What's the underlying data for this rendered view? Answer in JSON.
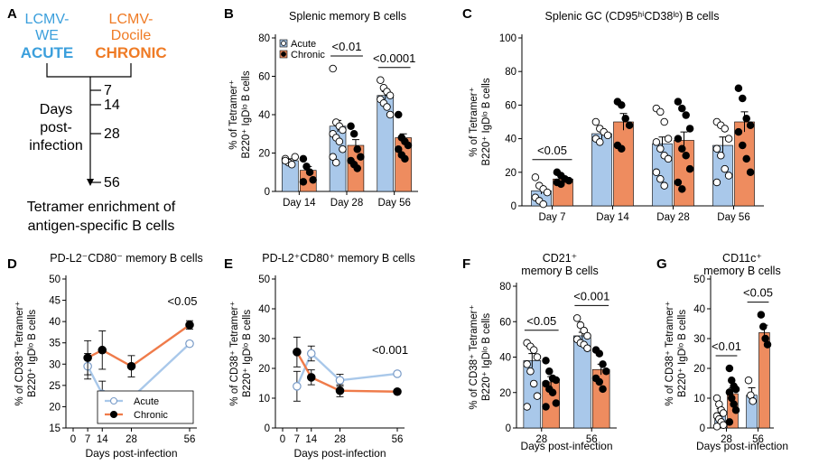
{
  "colors": {
    "acute_fill": "#a9c8ea",
    "chronic_fill": "#ee8c5f",
    "acute_line": "#a9c8ea",
    "chronic_line": "#ef7b4a",
    "acute_text": "#3b9fdc",
    "chronic_text": "#ef7b25"
  },
  "schematic": {
    "letter": "A",
    "acute_virus_l1": "LCMV-",
    "acute_virus_l2": "WE",
    "acute_label": "ACUTE",
    "chronic_virus_l1": "LCMV-",
    "chronic_virus_l2": "Docile",
    "chronic_label": "CHRONIC",
    "days_l1": "Days",
    "days_l2": "post-",
    "days_l3": "infection",
    "timepoints": [
      "7",
      "14",
      "28",
      "56"
    ],
    "caption_l1": "Tetramer enrichment of",
    "caption_l2": "antigen-specific B cells"
  },
  "chart_data": [
    {
      "id": "B",
      "type": "bar",
      "letter": "B",
      "title": "Splenic memory B cells",
      "ylabel_l1": "% of Tetramer⁺",
      "ylabel_l2": "B220⁺ IgDˡᵒ B cells",
      "categories": [
        "Day 14",
        "Day 28",
        "Day 56"
      ],
      "ylim": [
        0,
        80
      ],
      "yticks": [
        "0",
        "20",
        "40",
        "60",
        "80"
      ],
      "legend": [
        "Acute",
        "Chronic"
      ],
      "series": [
        {
          "name": "Acute",
          "values": [
            16,
            34,
            50
          ],
          "points": [
            [
              17,
              15,
              14,
              18,
              16
            ],
            [
              64,
              36,
              34,
              32,
              30,
              28,
              26,
              22,
              18,
              15
            ],
            [
              58,
              54,
              52,
              50,
              48,
              46,
              44,
              40
            ]
          ]
        },
        {
          "name": "Chronic",
          "values": [
            11,
            24,
            28
          ],
          "points": [
            [
              17,
              13,
              10,
              6,
              5
            ],
            [
              34,
              30,
              22,
              18,
              16,
              14,
              12
            ],
            [
              40,
              28,
              26,
              24,
              22,
              19,
              17
            ]
          ]
        }
      ],
      "errors": [
        [
          1,
          3,
          2
        ],
        [
          2,
          3,
          2
        ]
      ],
      "annotations": [
        {
          "text": "<0.01",
          "cat": 1
        },
        {
          "text": "<0.0001",
          "cat": 2
        }
      ]
    },
    {
      "id": "C",
      "type": "bar",
      "letter": "C",
      "title": "Splenic GC (CD95ʰⁱCD38ˡᵒ) B cells",
      "ylabel_l1": "% of Tetramer⁺",
      "ylabel_l2": "B220⁺ IgDˡᵒ B cells",
      "categories": [
        "Day 7",
        "Day 14",
        "Day 28",
        "Day 56"
      ],
      "ylim": [
        0,
        100
      ],
      "yticks": [
        "0",
        "20",
        "40",
        "60",
        "80",
        "100"
      ],
      "series": [
        {
          "name": "Acute",
          "values": [
            9,
            43,
            37,
            36
          ],
          "points": [
            [
              17,
              12,
              10,
              8,
              5,
              3,
              1
            ],
            [
              50,
              46,
              44,
              42,
              40,
              38
            ],
            [
              58,
              56,
              50,
              40,
              38,
              34,
              30,
              28,
              20,
              16,
              12
            ],
            [
              50,
              48,
              46,
              40,
              34,
              30,
              22,
              18,
              14
            ]
          ]
        },
        {
          "name": "Chronic",
          "values": [
            16,
            50,
            39,
            50
          ],
          "points": [
            [
              20,
              18,
              16,
              15,
              14,
              13
            ],
            [
              62,
              60,
              52,
              48,
              36,
              34
            ],
            [
              62,
              58,
              54,
              46,
              40,
              34,
              30,
              22,
              14,
              10
            ],
            [
              70,
              64,
              52,
              48,
              44,
              36,
              28,
              20
            ]
          ]
        }
      ],
      "errors": [
        [
          2,
          3,
          4,
          5
        ],
        [
          1,
          5,
          5,
          6
        ]
      ],
      "annotations": [
        {
          "text": "<0.05",
          "cat": 0
        }
      ]
    },
    {
      "id": "D",
      "type": "line",
      "letter": "D",
      "title": "PD-L2⁻CD80⁻ memory B cells",
      "ylabel_l1": "% of CD38⁺ Tetramer⁺",
      "ylabel_l2": "B220⁺ IgDˡᵒ B cells",
      "xlabel": "Days post-infection",
      "x": [
        7,
        14,
        28,
        56
      ],
      "xticks": [
        "0",
        "7",
        "14",
        "28",
        "56"
      ],
      "ylim": [
        15,
        50
      ],
      "yticks": [
        "15",
        "20",
        "25",
        "30",
        "35",
        "40",
        "45",
        "50"
      ],
      "legend": [
        "Acute",
        "Chronic"
      ],
      "series": [
        {
          "name": "Acute",
          "values": [
            29.5,
            23,
            22,
            34.8
          ],
          "errors": [
            3,
            3,
            1.5,
            0.5
          ]
        },
        {
          "name": "Chronic",
          "values": [
            31.5,
            33.3,
            29.5,
            39.2
          ],
          "errors": [
            4,
            4.5,
            2.5,
            1
          ]
        }
      ],
      "annotations": [
        {
          "text": "<0.05",
          "x": 56
        }
      ]
    },
    {
      "id": "E",
      "type": "line",
      "letter": "E",
      "title": "PD-L2⁺CD80⁺ memory B cells",
      "ylabel_l1": "% of CD38⁺ Tetramer⁺",
      "ylabel_l2": "B220⁺ IgDˡᵒ B cells",
      "xlabel": "Days post-infection",
      "x": [
        7,
        14,
        28,
        56
      ],
      "xticks": [
        "0",
        "7",
        "14",
        "28",
        "56"
      ],
      "ylim": [
        0,
        50
      ],
      "yticks": [
        "0",
        "10",
        "20",
        "30",
        "40",
        "50"
      ],
      "series": [
        {
          "name": "Acute",
          "values": [
            14,
            25,
            16,
            18.2
          ],
          "errors": [
            5,
            2.5,
            2,
            0.6
          ]
        },
        {
          "name": "Chronic",
          "values": [
            25.5,
            17,
            12.5,
            12.2
          ],
          "errors": [
            5,
            2.5,
            2,
            0.3
          ]
        }
      ],
      "annotations": [
        {
          "text": "<0.001",
          "x": 56
        }
      ]
    },
    {
      "id": "F",
      "type": "bar",
      "letter": "F",
      "title_l1": "CD21⁺",
      "title_l2": "memory B cells",
      "ylabel_l1": "% of CD38⁺ Tetramer⁺",
      "ylabel_l2": "B220⁺ IgDˡᵒ B cells",
      "xlabel": "Days post-infection",
      "categories": [
        "28",
        "56"
      ],
      "ylim": [
        0,
        80
      ],
      "yticks": [
        "0",
        "20",
        "40",
        "60",
        "80"
      ],
      "series": [
        {
          "name": "Acute",
          "values": [
            38,
            52
          ],
          "points": [
            [
              48,
              46,
              44,
              40,
              36,
              32,
              25,
              18,
              12
            ],
            [
              62,
              58,
              55,
              52,
              50,
              48,
              47,
              45
            ]
          ]
        },
        {
          "name": "Chronic",
          "values": [
            26,
            33
          ],
          "points": [
            [
              38,
              32,
              28,
              27,
              25,
              22,
              20,
              14,
              12
            ],
            [
              44,
              42,
              36,
              32,
              28,
              26,
              22
            ]
          ]
        }
      ],
      "errors": [
        [
          4,
          2
        ],
        [
          3,
          3
        ]
      ],
      "annotations": [
        {
          "text": "<0.05",
          "cat": 0
        },
        {
          "text": "<0.001",
          "cat": 1
        }
      ]
    },
    {
      "id": "G",
      "type": "bar",
      "letter": "G",
      "title_l1": "CD11c⁺",
      "title_l2": "memory B cells",
      "ylabel_l1": "% of CD38⁺ Tetramer⁺",
      "ylabel_l2": "B220⁺ IgDˡᵒ B cells",
      "xlabel": "Days post-infection",
      "categories": [
        "28",
        "56"
      ],
      "ylim": [
        0,
        50
      ],
      "yticks": [
        "0",
        "10",
        "20",
        "30",
        "40",
        "50"
      ],
      "series": [
        {
          "name": "Acute",
          "values": [
            5,
            11
          ],
          "points": [
            [
              10,
              8,
              6,
              5,
              4,
              3,
              2,
              1,
              0.5
            ],
            [
              16,
              11,
              9
            ]
          ]
        },
        {
          "name": "Chronic",
          "values": [
            11.5,
            32
          ],
          "points": [
            [
              20,
              16,
              14,
              13,
              12,
              10,
              8,
              6,
              2
            ],
            [
              38,
              34,
              30,
              28
            ]
          ]
        }
      ],
      "errors": [
        [
          1.5,
          2.5
        ],
        [
          2,
          2.5
        ]
      ],
      "annotations": [
        {
          "text": "<0.01",
          "cat": 0
        },
        {
          "text": "<0.05",
          "cat": 1
        }
      ]
    }
  ]
}
